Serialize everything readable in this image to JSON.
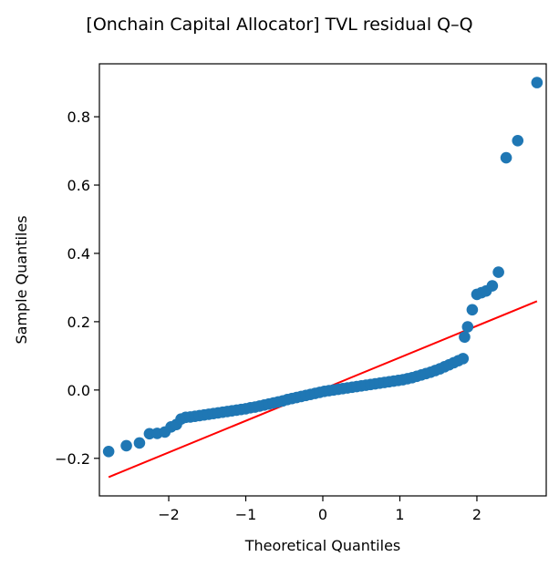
{
  "chart_data": {
    "type": "scatter",
    "title": "[Onchain Capital Allocator] TVL residual Q–Q",
    "xlabel": "Theoretical Quantiles",
    "ylabel": "Sample Quantiles",
    "xlim": [
      -2.9,
      2.9
    ],
    "ylim": [
      -0.31,
      0.955
    ],
    "x_ticks": [
      -2,
      -1,
      0,
      1,
      2
    ],
    "x_tick_labels": [
      "−2",
      "−1",
      "0",
      "1",
      "2"
    ],
    "y_ticks": [
      -0.2,
      0.0,
      0.2,
      0.4,
      0.6,
      0.8
    ],
    "y_tick_labels": [
      "−0.2",
      "0.0",
      "0.2",
      "0.4",
      "0.6",
      "0.8"
    ],
    "grid": false,
    "legend": "none",
    "colors": {
      "points": "#1f77b4",
      "reference_line": "#ff0000"
    },
    "reference_line": {
      "x": [
        -2.78,
        2.78
      ],
      "y": [
        -0.255,
        0.26
      ]
    },
    "series": [
      {
        "points": [
          [
            -2.78,
            -0.18
          ],
          [
            -2.55,
            -0.163
          ],
          [
            -2.38,
            -0.155
          ],
          [
            -2.25,
            -0.128
          ],
          [
            -2.15,
            -0.127
          ],
          [
            -2.05,
            -0.123
          ],
          [
            -1.97,
            -0.108
          ],
          [
            -1.9,
            -0.101
          ],
          [
            -1.84,
            -0.085
          ],
          [
            -1.78,
            -0.08
          ],
          [
            -1.72,
            -0.079
          ],
          [
            -1.66,
            -0.077
          ],
          [
            -1.6,
            -0.075
          ],
          [
            -1.54,
            -0.073
          ],
          [
            -1.48,
            -0.071
          ],
          [
            -1.42,
            -0.069
          ],
          [
            -1.36,
            -0.067
          ],
          [
            -1.3,
            -0.065
          ],
          [
            -1.24,
            -0.063
          ],
          [
            -1.18,
            -0.061
          ],
          [
            -1.12,
            -0.059
          ],
          [
            -1.06,
            -0.057
          ],
          [
            -1.0,
            -0.055
          ],
          [
            -0.94,
            -0.052
          ],
          [
            -0.88,
            -0.05
          ],
          [
            -0.82,
            -0.047
          ],
          [
            -0.76,
            -0.044
          ],
          [
            -0.7,
            -0.041
          ],
          [
            -0.64,
            -0.038
          ],
          [
            -0.58,
            -0.035
          ],
          [
            -0.52,
            -0.032
          ],
          [
            -0.46,
            -0.028
          ],
          [
            -0.4,
            -0.025
          ],
          [
            -0.34,
            -0.022
          ],
          [
            -0.28,
            -0.019
          ],
          [
            -0.22,
            -0.016
          ],
          [
            -0.16,
            -0.013
          ],
          [
            -0.1,
            -0.01
          ],
          [
            -0.04,
            -0.007
          ],
          [
            0.02,
            -0.004
          ],
          [
            0.08,
            -0.002
          ],
          [
            0.14,
            0.0
          ],
          [
            0.2,
            0.002
          ],
          [
            0.26,
            0.004
          ],
          [
            0.32,
            0.006
          ],
          [
            0.38,
            0.008
          ],
          [
            0.44,
            0.01
          ],
          [
            0.5,
            0.012
          ],
          [
            0.56,
            0.014
          ],
          [
            0.62,
            0.016
          ],
          [
            0.68,
            0.018
          ],
          [
            0.74,
            0.02
          ],
          [
            0.8,
            0.022
          ],
          [
            0.86,
            0.024
          ],
          [
            0.92,
            0.026
          ],
          [
            0.98,
            0.028
          ],
          [
            1.04,
            0.03
          ],
          [
            1.1,
            0.033
          ],
          [
            1.16,
            0.036
          ],
          [
            1.22,
            0.04
          ],
          [
            1.28,
            0.044
          ],
          [
            1.34,
            0.048
          ],
          [
            1.4,
            0.052
          ],
          [
            1.46,
            0.057
          ],
          [
            1.52,
            0.062
          ],
          [
            1.58,
            0.068
          ],
          [
            1.64,
            0.074
          ],
          [
            1.7,
            0.08
          ],
          [
            1.76,
            0.086
          ],
          [
            1.82,
            0.092
          ],
          [
            1.84,
            0.155
          ],
          [
            1.88,
            0.185
          ],
          [
            1.94,
            0.235
          ],
          [
            2.0,
            0.28
          ],
          [
            2.06,
            0.285
          ],
          [
            2.12,
            0.29
          ],
          [
            2.2,
            0.305
          ],
          [
            2.28,
            0.345
          ],
          [
            2.38,
            0.68
          ],
          [
            2.53,
            0.73
          ],
          [
            2.78,
            0.9
          ]
        ]
      }
    ]
  }
}
